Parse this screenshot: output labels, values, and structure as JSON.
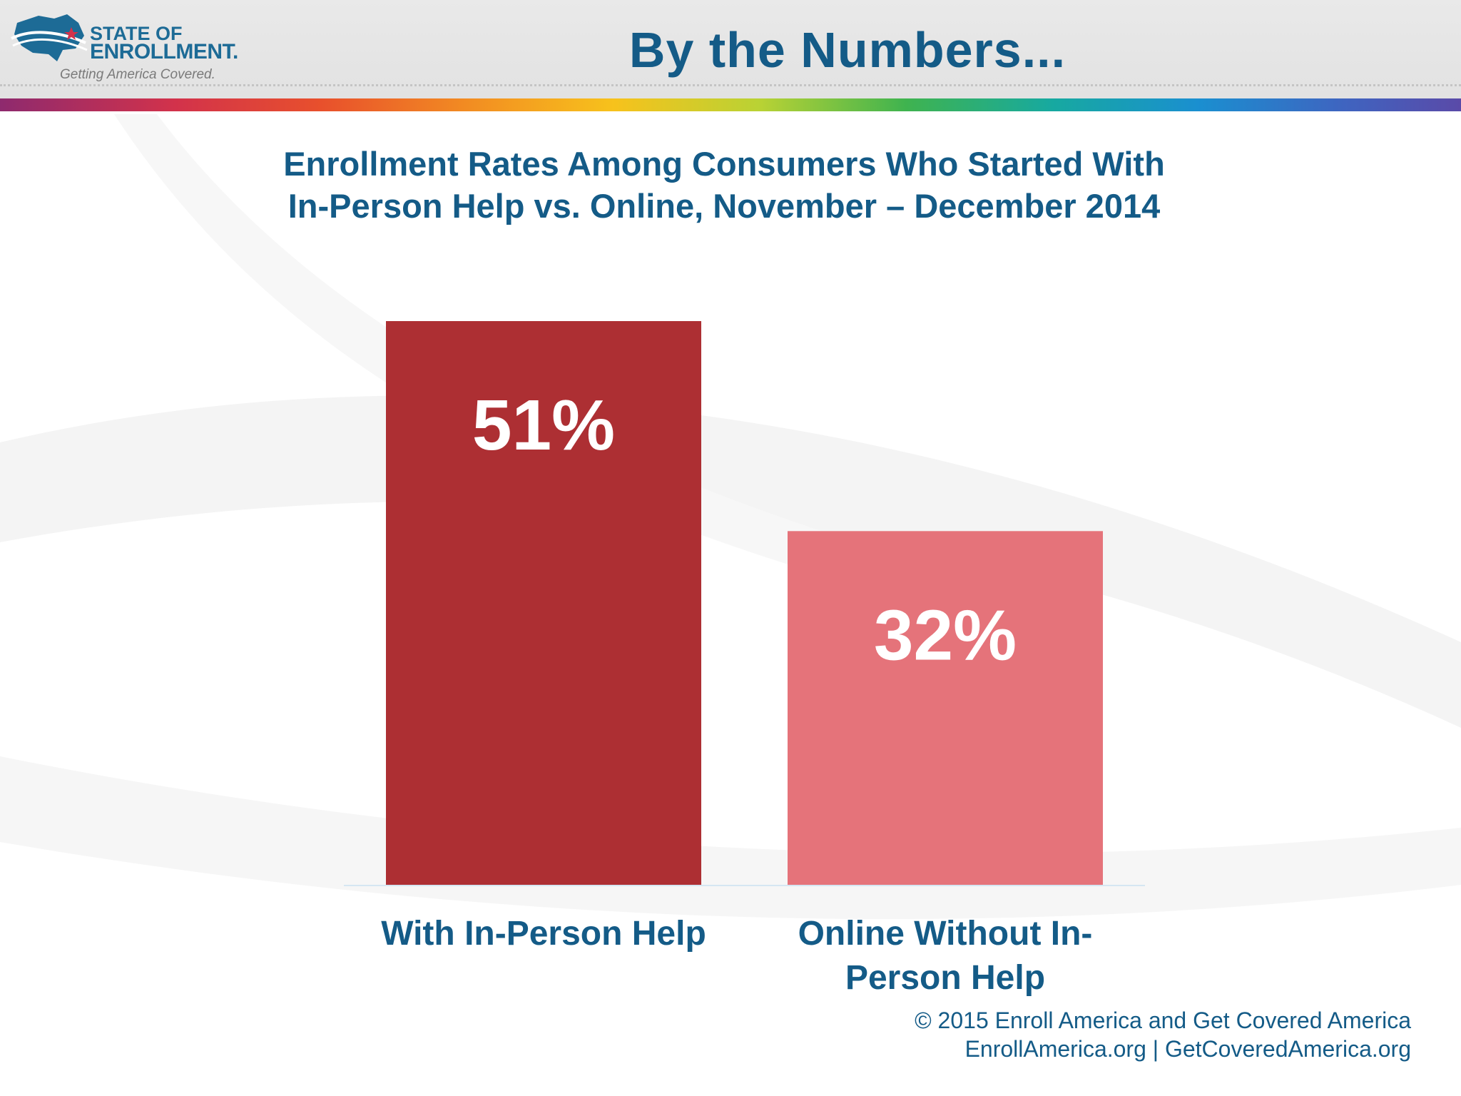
{
  "header": {
    "logo": {
      "line1": "STATE OF",
      "line2": "ENROLLMENT.",
      "tagline": "Getting America Covered."
    },
    "title": "By the Numbers..."
  },
  "colors": {
    "title_blue": "#145b87",
    "bar_dark_red": "#ad2f33",
    "bar_light_red": "#e5737a",
    "value_label": "#ffffff"
  },
  "chart_data": {
    "type": "bar",
    "title": "Enrollment Rates Among Consumers Who Started With In-Person Help vs. Online, November – December 2014",
    "title_lines": [
      "Enrollment Rates Among Consumers Who Started With",
      "In-Person Help vs. Online, November – December 2014"
    ],
    "categories": [
      "With In-Person Help",
      "Online Without In-Person Help"
    ],
    "category_label_lines": [
      [
        "With In-Person Help"
      ],
      [
        "Online Without In-",
        "Person Help"
      ]
    ],
    "values": [
      51,
      32
    ],
    "value_labels": [
      "51%",
      "32%"
    ],
    "bar_colors": [
      "#ad2f33",
      "#e5737a"
    ],
    "unit": "%",
    "ylim": [
      0,
      51
    ],
    "grid": false,
    "legend": "none"
  },
  "footer": {
    "copyright": "© 2015 Enroll America and Get Covered America",
    "links": "EnrollAmerica.org | GetCoveredAmerica.org"
  }
}
